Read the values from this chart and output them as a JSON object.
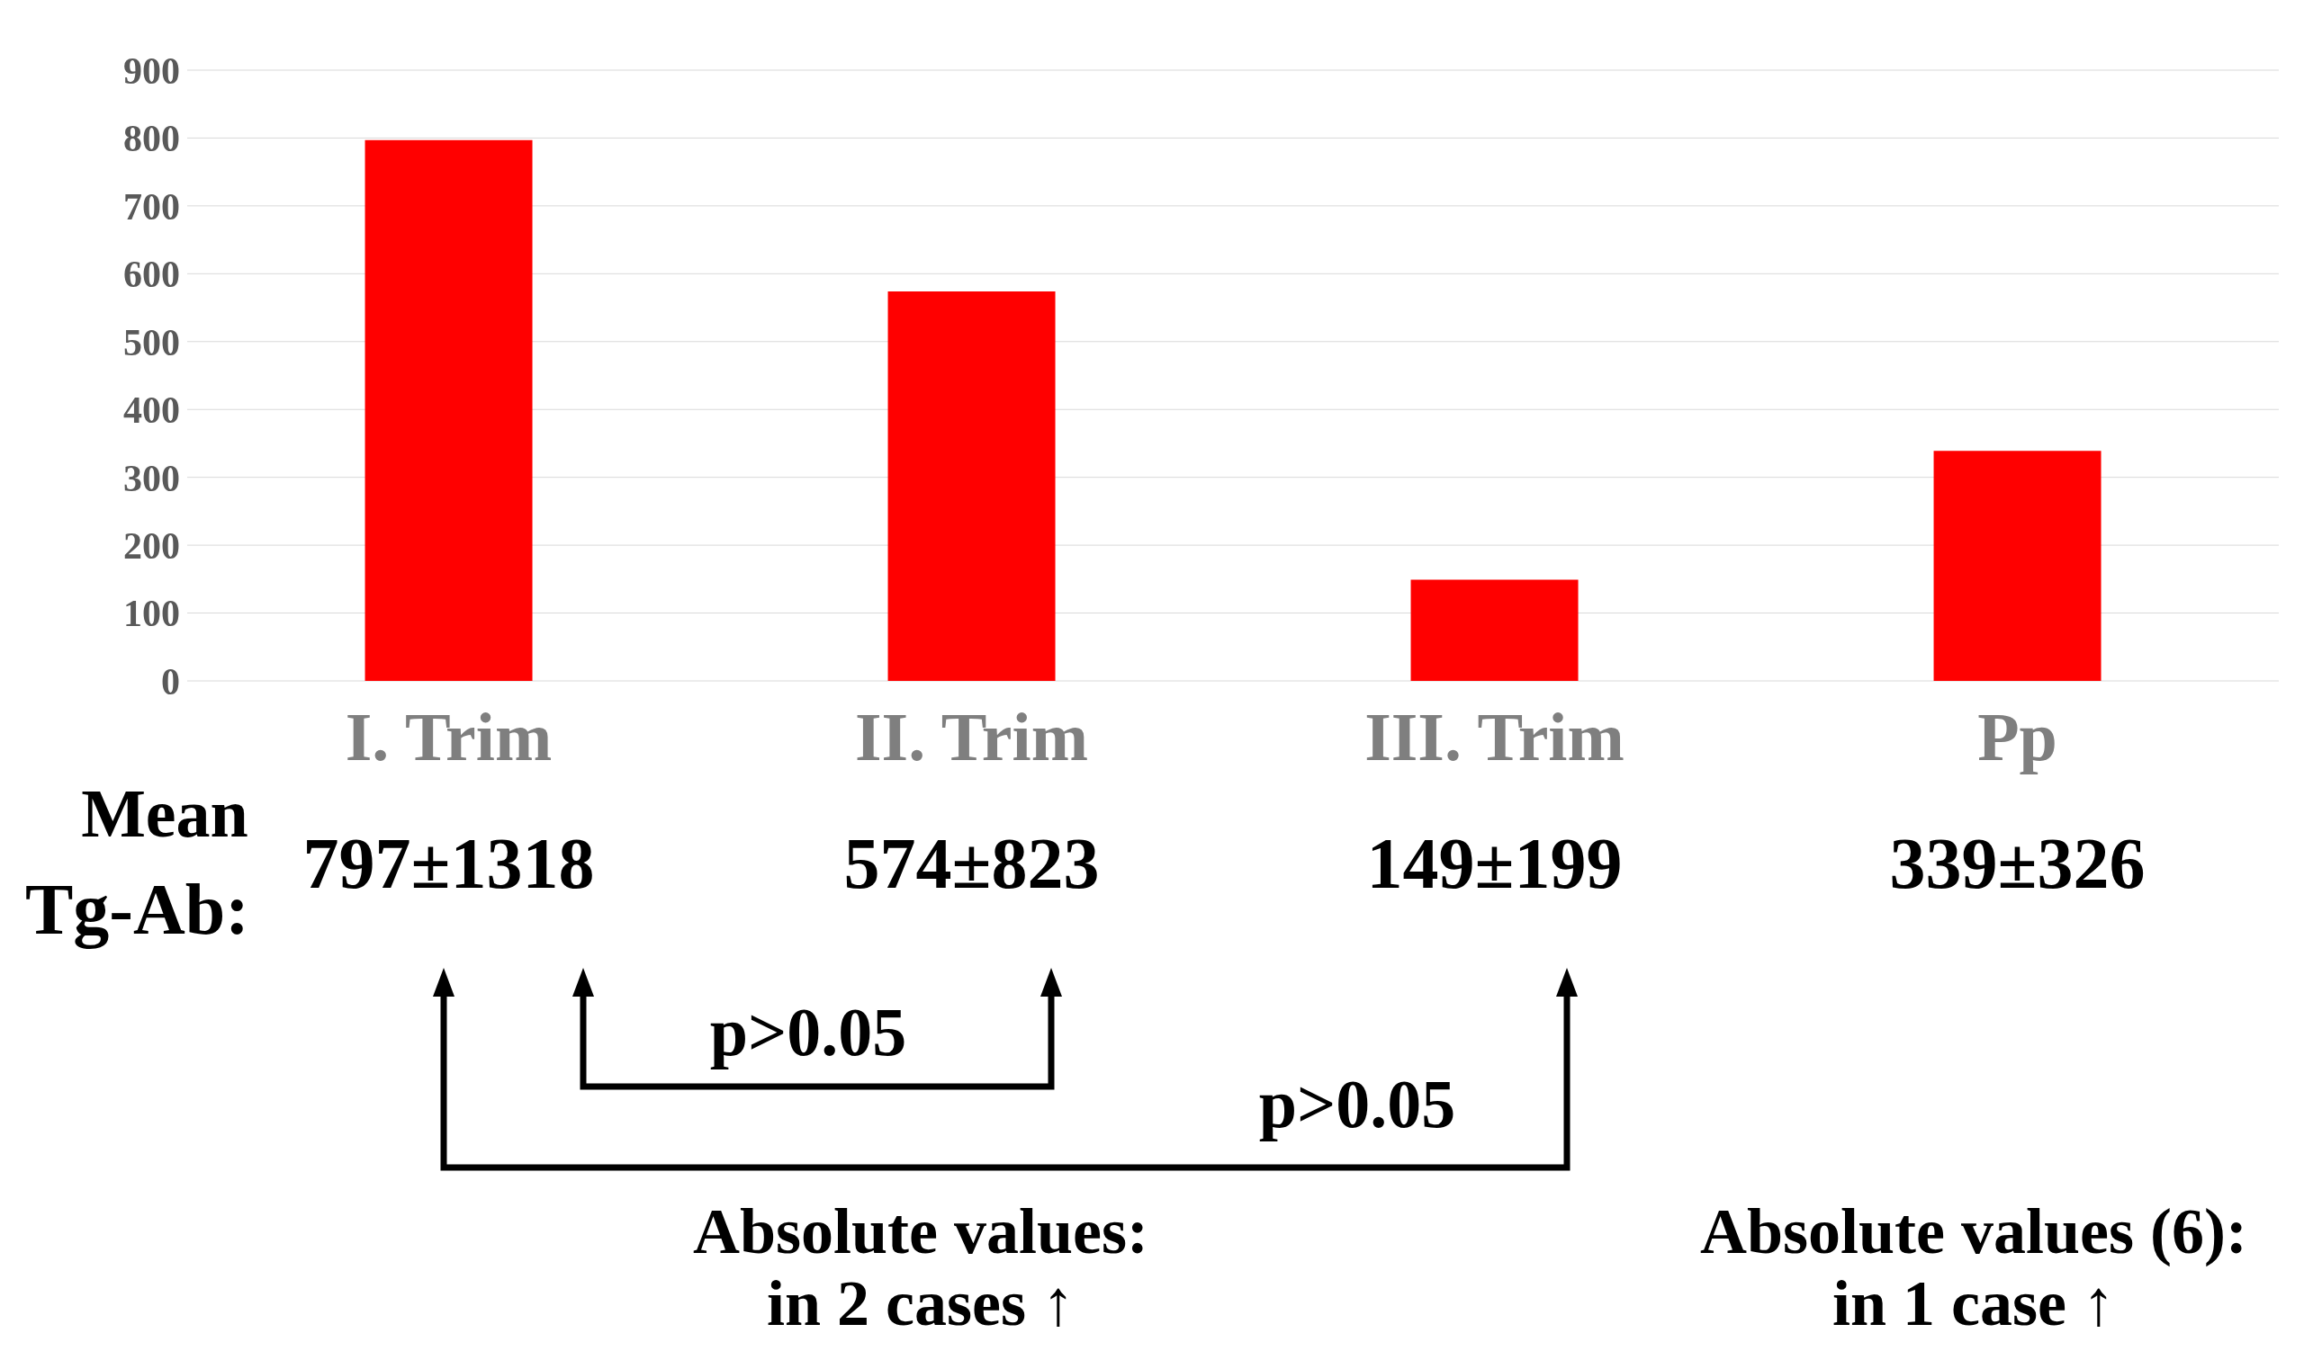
{
  "chart_data": {
    "type": "bar",
    "categories": [
      "I. Trim",
      "II. Trim",
      "III. Trim",
      "Pp"
    ],
    "values": [
      797,
      574,
      149,
      339
    ],
    "value_labels": [
      "797±1318",
      "574±823",
      "149±199",
      "339±326"
    ],
    "color": "#ff0000",
    "ylim": [
      0,
      900
    ],
    "yticks": [
      0,
      100,
      200,
      300,
      400,
      500,
      600,
      700,
      800,
      900
    ],
    "grid": "y",
    "annotations": [
      "Mean",
      "Tg-Ab:",
      "p>0.05",
      "p>0.05",
      "Absolute values:",
      "in 2 cases ↑",
      "Absolute values (6):",
      "in 1 case ↑"
    ]
  }
}
